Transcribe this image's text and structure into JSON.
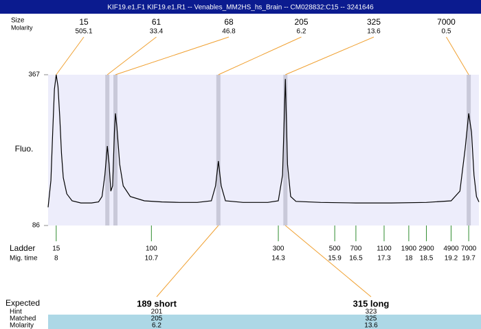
{
  "title": "KIF19.e1.F1  KIF19.e1.R1 -- Venables_MM2HS_hs_Brain -- CM028832:C15 -- 3241646",
  "chart_data": {
    "type": "electropherogram",
    "y_label": "Fluo.",
    "ylim": [
      86,
      367
    ],
    "yticks": [
      86,
      367
    ],
    "xlim": [
      7.77,
      19.99
    ],
    "color": "#000000",
    "trace": {
      "x": [
        7.77,
        7.85,
        7.9,
        7.95,
        8.0,
        8.05,
        8.1,
        8.15,
        8.2,
        8.3,
        8.45,
        8.7,
        9.0,
        9.2,
        9.3,
        9.38,
        9.45,
        9.5,
        9.55,
        9.6,
        9.65,
        9.68,
        9.72,
        9.8,
        9.9,
        10.1,
        10.5,
        11.0,
        11.5,
        12.0,
        12.4,
        12.52,
        12.6,
        12.68,
        12.8,
        13.3,
        14.0,
        14.3,
        14.42,
        14.5,
        14.56,
        14.65,
        14.8,
        15.5,
        16.5,
        17.5,
        18.5,
        19.2,
        19.45,
        19.6,
        19.7,
        19.78,
        19.85,
        19.92,
        19.99
      ],
      "y": [
        120,
        170,
        260,
        340,
        367,
        345,
        290,
        220,
        175,
        145,
        132,
        128,
        128,
        130,
        140,
        180,
        234,
        200,
        150,
        160,
        260,
        295,
        270,
        200,
        160,
        140,
        132,
        130,
        129,
        129,
        132,
        160,
        206,
        160,
        132,
        129,
        129,
        132,
        180,
        359,
        200,
        140,
        131,
        129,
        128,
        128,
        129,
        132,
        150,
        230,
        295,
        260,
        180,
        140,
        130
      ]
    },
    "peaks": {
      "size_label": "Size",
      "molarity_label": "Molarity",
      "sizes": [
        15,
        61,
        68,
        205,
        325,
        7000
      ],
      "molarities": [
        505.1,
        33.4,
        46.8,
        6.2,
        13.6,
        0.5
      ],
      "times": [
        8.0,
        9.45,
        9.68,
        12.6,
        14.5,
        19.7
      ]
    },
    "ladder": {
      "label": "Ladder",
      "time_label": "Mig. time",
      "sizes": [
        15,
        100,
        300,
        500,
        700,
        1100,
        1900,
        2900,
        4900,
        7000
      ],
      "times": [
        8,
        10.7,
        14.3,
        15.9,
        16.5,
        17.3,
        18,
        18.5,
        19.2,
        19.7
      ]
    }
  },
  "expected_table": {
    "label": "Expected",
    "hint_label": "Hint",
    "matched_label": "Matched",
    "molarity_label": "Molarity",
    "columns": [
      {
        "name": "189 short",
        "hint": 201,
        "matched": 205,
        "molarity": 6.2
      },
      {
        "name": "315 long",
        "hint": 323,
        "matched": 325,
        "molarity": 13.6
      }
    ]
  }
}
